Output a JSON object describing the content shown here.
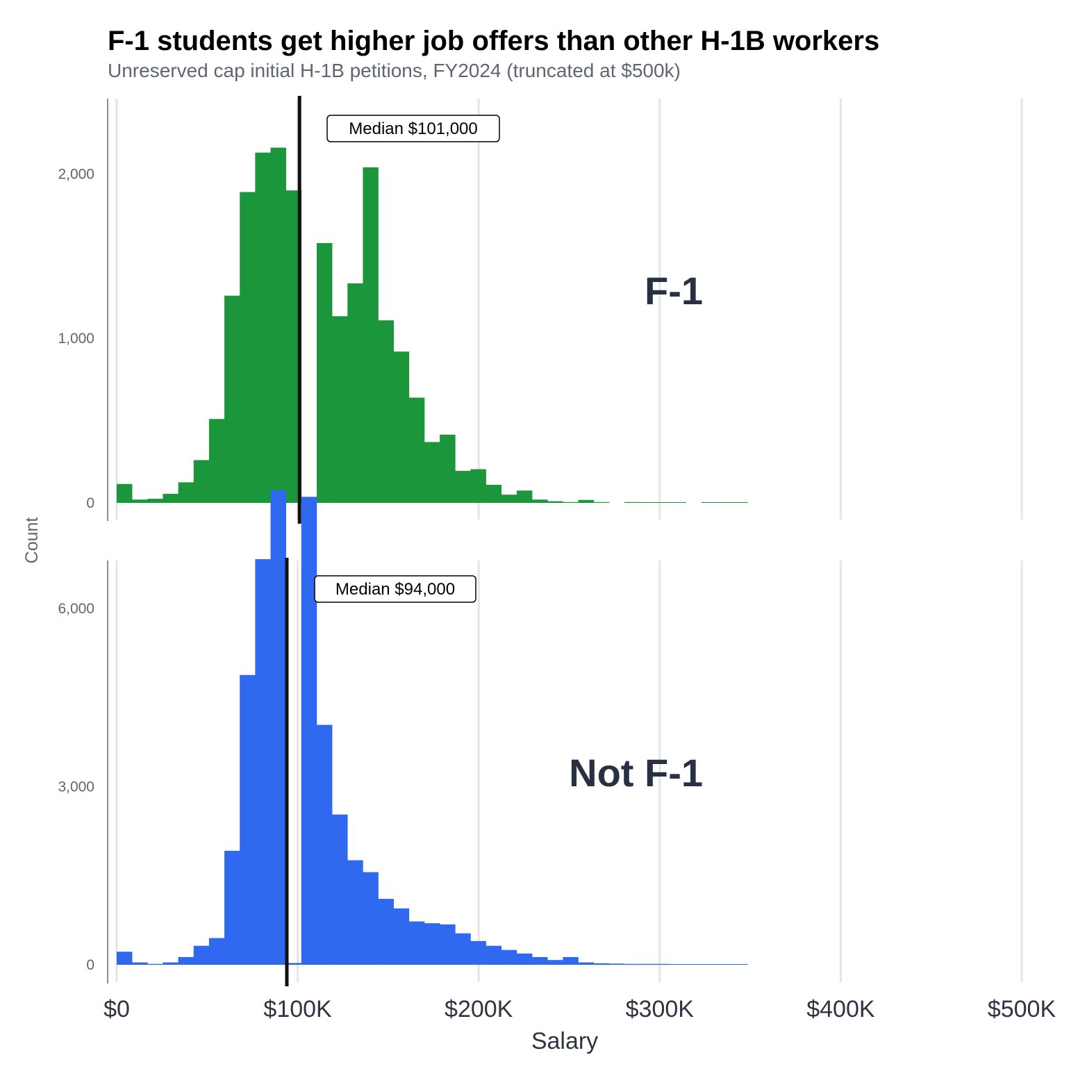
{
  "colors": {
    "f1": "#1c963a",
    "not_f1": "#2f69f0",
    "median_line": "#111111",
    "grid": "#e5e5e5",
    "axis": "#8a8f96"
  },
  "chart_data": {
    "type": "bar",
    "subtype": "histogram-faceted",
    "title": "F-1 students get higher job offers than other H-1B workers",
    "subtitle": "Unreserved cap initial H-1B petitions, FY2024 (truncated at $500k)",
    "xlabel": "Salary",
    "ylabel": "Count",
    "xlim": [
      0,
      500000
    ],
    "x_ticks": [
      0,
      100000,
      200000,
      300000,
      400000,
      500000
    ],
    "x_tick_labels": [
      "$0",
      "$100K",
      "$200K",
      "$300K",
      "$400K",
      "$500K"
    ],
    "bin_width": 8500,
    "grid": "vertical",
    "panels": [
      {
        "label": "F-1",
        "ylim": [
          0,
          2230
        ],
        "y_ticks": [
          0,
          1000,
          2000
        ],
        "y_tick_labels": [
          "0",
          "1,000",
          "2,000"
        ],
        "median": 101000,
        "median_label": "Median $101,000",
        "values": [
          115,
          20,
          25,
          55,
          125,
          260,
          510,
          1260,
          1890,
          2130,
          2160,
          1900,
          10,
          1580,
          1135,
          1335,
          2040,
          1110,
          920,
          640,
          370,
          415,
          195,
          205,
          110,
          50,
          75,
          20,
          10,
          5,
          18,
          5,
          0,
          5,
          3,
          3,
          2,
          0,
          1,
          1,
          1
        ]
      },
      {
        "label": "Not F-1",
        "ylim": [
          0,
          8000
        ],
        "y_ticks": [
          0,
          3000,
          6000
        ],
        "y_tick_labels": [
          "0",
          "3,000",
          "6,000"
        ],
        "median": 94000,
        "median_label": "Median $94,000",
        "values": [
          220,
          40,
          15,
          40,
          130,
          320,
          450,
          1920,
          4880,
          6830,
          7990,
          30,
          7880,
          4040,
          2530,
          1760,
          1560,
          1110,
          950,
          730,
          700,
          680,
          530,
          400,
          320,
          250,
          190,
          130,
          80,
          130,
          40,
          25,
          20,
          15,
          15,
          15,
          12,
          10,
          8,
          5,
          5
        ]
      }
    ]
  }
}
